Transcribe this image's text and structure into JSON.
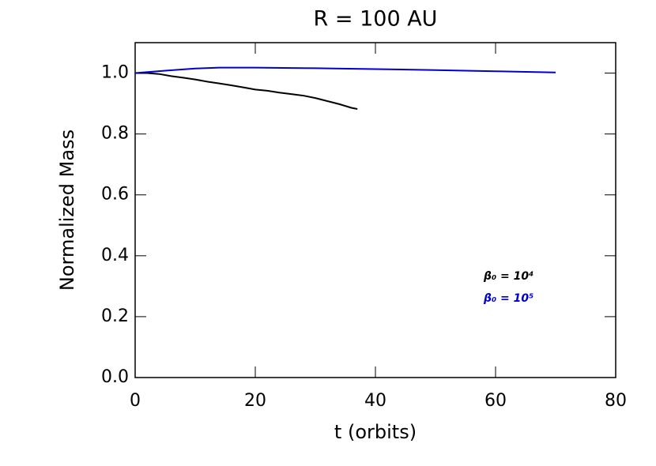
{
  "chart_data": {
    "type": "line",
    "title": "R = 100 AU",
    "x_label": "t (orbits)",
    "y_label": "Normalized Mass",
    "series": [
      {
        "name": "β₀ = 10⁴",
        "color": "#000000",
        "x": [
          0,
          2,
          4,
          6,
          8,
          10,
          12,
          14,
          16,
          18,
          20,
          22,
          24,
          26,
          28,
          30,
          32,
          34,
          36,
          37
        ],
        "values": [
          1.0,
          1.0,
          0.997,
          0.99,
          0.985,
          0.979,
          0.972,
          0.966,
          0.96,
          0.953,
          0.946,
          0.942,
          0.936,
          0.931,
          0.926,
          0.918,
          0.908,
          0.898,
          0.886,
          0.882
        ]
      },
      {
        "name": "β₀ = 10⁵",
        "color": "#0000cc",
        "x": [
          0,
          5,
          10,
          14,
          20,
          30,
          40,
          50,
          60,
          70
        ],
        "values": [
          1.0,
          1.008,
          1.015,
          1.018,
          1.018,
          1.016,
          1.013,
          1.01,
          1.006,
          1.002
        ]
      }
    ],
    "xlim": [
      0,
      80
    ],
    "xticks": [
      0,
      20,
      40,
      60,
      80
    ],
    "ylim": [
      0,
      1.1
    ],
    "yticks": [
      {
        "value": 0,
        "label": "0.0"
      },
      0.2,
      0.4,
      0.6,
      0.8,
      {
        "value": 1,
        "label": "1.0"
      }
    ],
    "grid": false
  }
}
